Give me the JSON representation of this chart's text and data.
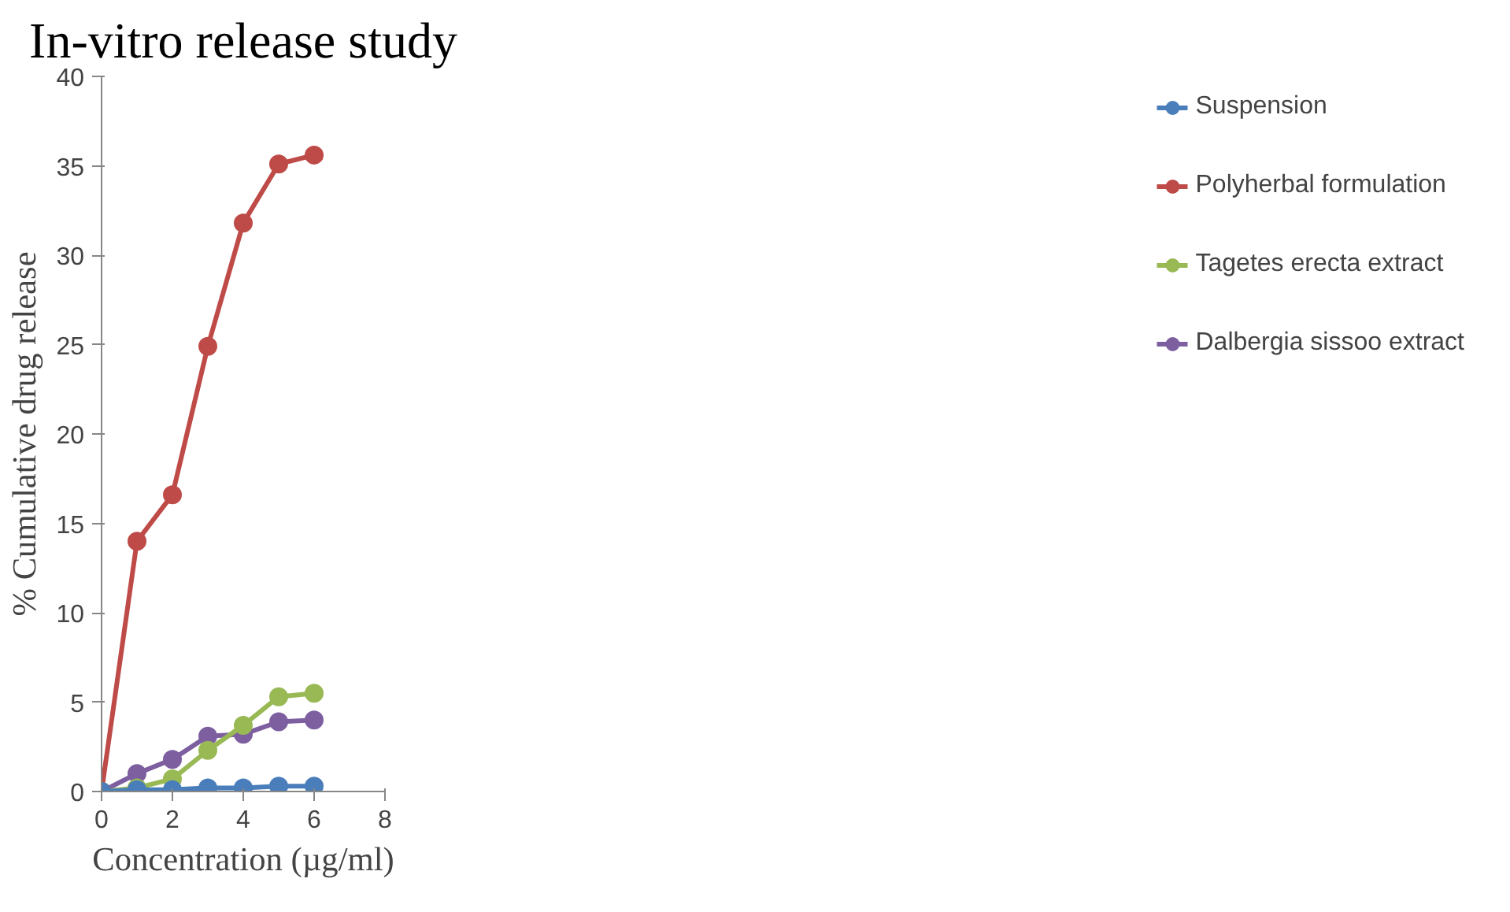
{
  "chart_data": {
    "type": "line",
    "title": "In-vitro release study",
    "xlabel": "Concentration (µg/ml)",
    "ylabel": "% Cumulative drug release",
    "x": [
      0,
      1,
      2,
      3,
      4,
      5,
      6
    ],
    "series": [
      {
        "name": "Suspension",
        "color": "#4a7ebb",
        "values": [
          0,
          0.1,
          0.1,
          0.2,
          0.2,
          0.3,
          0.3
        ]
      },
      {
        "name": "Polyherbal formulation",
        "color": "#be4b48",
        "values": [
          0,
          14,
          16.6,
          24.9,
          31.8,
          35.1,
          35.6
        ]
      },
      {
        "name": "Tagetes erecta extract",
        "color": "#98b954",
        "values": [
          0,
          0.2,
          0.7,
          2.3,
          3.7,
          5.3,
          5.5
        ]
      },
      {
        "name": "Dalbergia sissoo extract",
        "color": "#7d5fa0",
        "values": [
          0,
          1.0,
          1.8,
          3.1,
          3.2,
          3.9,
          4.0
        ]
      }
    ],
    "xlim": [
      0,
      8
    ],
    "xticks": [
      0,
      2,
      4,
      6,
      8
    ],
    "ylim": [
      0,
      40
    ],
    "yticks": [
      0,
      5,
      10,
      15,
      20,
      25,
      30,
      35,
      40
    ],
    "grid": false,
    "legend": "right",
    "marker": "circle",
    "line_style": "solid"
  }
}
